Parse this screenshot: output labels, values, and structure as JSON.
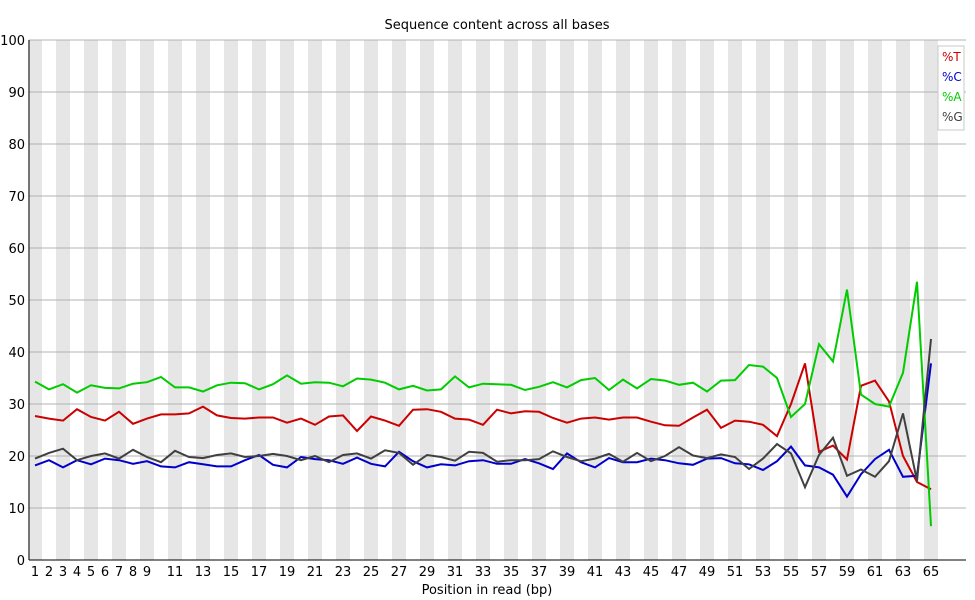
{
  "chart_data": {
    "type": "line",
    "title": "Sequence content across all bases",
    "xlabel": "Position in read (bp)",
    "ylabel": "",
    "ylim": [
      0,
      100
    ],
    "yticks": [
      "0",
      "10",
      "20",
      "30",
      "40",
      "50",
      "60",
      "70",
      "80",
      "90",
      "100"
    ],
    "xtick_labels": [
      {
        "pos": 1,
        "label": "1"
      },
      {
        "pos": 2,
        "label": "2"
      },
      {
        "pos": 3,
        "label": "3"
      },
      {
        "pos": 4,
        "label": "4"
      },
      {
        "pos": 5,
        "label": "5"
      },
      {
        "pos": 6,
        "label": "6"
      },
      {
        "pos": 7,
        "label": "7"
      },
      {
        "pos": 8,
        "label": "8"
      },
      {
        "pos": 9,
        "label": "9"
      },
      {
        "pos": 11,
        "label": "11"
      },
      {
        "pos": 13,
        "label": "13"
      },
      {
        "pos": 15,
        "label": "15"
      },
      {
        "pos": 17,
        "label": "17"
      },
      {
        "pos": 19,
        "label": "19"
      },
      {
        "pos": 21,
        "label": "21"
      },
      {
        "pos": 23,
        "label": "23"
      },
      {
        "pos": 25,
        "label": "25"
      },
      {
        "pos": 27,
        "label": "27"
      },
      {
        "pos": 29,
        "label": "29"
      },
      {
        "pos": 31,
        "label": "31"
      },
      {
        "pos": 33,
        "label": "33"
      },
      {
        "pos": 35,
        "label": "35"
      },
      {
        "pos": 37,
        "label": "37"
      },
      {
        "pos": 39,
        "label": "39"
      },
      {
        "pos": 41,
        "label": "41"
      },
      {
        "pos": 43,
        "label": "43"
      },
      {
        "pos": 45,
        "label": "45"
      },
      {
        "pos": 47,
        "label": "47"
      },
      {
        "pos": 49,
        "label": "49"
      },
      {
        "pos": 51,
        "label": "51"
      },
      {
        "pos": 53,
        "label": "53"
      },
      {
        "pos": 55,
        "label": "55"
      },
      {
        "pos": 57,
        "label": "57"
      },
      {
        "pos": 59,
        "label": "59"
      },
      {
        "pos": 61,
        "label": "61"
      },
      {
        "pos": 63,
        "label": "63"
      },
      {
        "pos": 65,
        "label": "65"
      }
    ],
    "x": [
      1,
      2,
      3,
      4,
      5,
      6,
      7,
      8,
      9,
      10,
      11,
      12,
      13,
      14,
      15,
      16,
      17,
      18,
      19,
      20,
      21,
      22,
      23,
      24,
      25,
      26,
      27,
      28,
      29,
      30,
      31,
      32,
      33,
      34,
      35,
      36,
      37,
      38,
      39,
      40,
      41,
      42,
      43,
      44,
      45,
      46,
      47,
      48,
      49,
      50,
      51,
      52,
      53,
      54,
      55,
      56,
      57,
      58,
      59,
      60,
      61,
      62,
      63,
      64,
      65
    ],
    "legend_position": "top-right",
    "grid": true,
    "series": [
      {
        "name": "%T",
        "color": "#cc0000",
        "values": [
          27.7,
          27.2,
          26.8,
          29.0,
          27.5,
          26.8,
          28.5,
          26.2,
          27.2,
          28.0,
          28.0,
          28.2,
          29.5,
          27.8,
          27.3,
          27.2,
          27.4,
          27.4,
          26.4,
          27.2,
          26.0,
          27.6,
          27.8,
          24.8,
          27.6,
          26.8,
          25.8,
          28.9,
          29.0,
          28.5,
          27.2,
          27.0,
          26.0,
          28.9,
          28.2,
          28.6,
          28.5,
          27.3,
          26.4,
          27.2,
          27.4,
          27.0,
          27.4,
          27.4,
          26.6,
          25.9,
          25.8,
          27.4,
          28.9,
          25.4,
          26.8,
          26.6,
          26.0,
          23.8,
          30.0,
          37.8,
          20.8,
          22.0,
          19.3,
          33.5,
          34.5,
          30.5,
          20.0,
          15.0,
          13.6
        ]
      },
      {
        "name": "%C",
        "color": "#0000cc",
        "values": [
          18.2,
          19.2,
          17.8,
          19.2,
          18.4,
          19.5,
          19.2,
          18.5,
          19.0,
          18.0,
          17.8,
          18.8,
          18.4,
          18.0,
          18.0,
          19.2,
          20.2,
          18.3,
          17.8,
          19.8,
          19.4,
          19.2,
          18.5,
          19.7,
          18.5,
          18.0,
          20.8,
          19.0,
          17.8,
          18.4,
          18.2,
          19.0,
          19.2,
          18.5,
          18.5,
          19.4,
          18.6,
          17.5,
          20.5,
          18.8,
          17.8,
          19.6,
          18.8,
          18.8,
          19.5,
          19.2,
          18.6,
          18.3,
          19.5,
          19.6,
          18.6,
          18.4,
          17.3,
          19.0,
          21.8,
          18.2,
          17.8,
          16.4,
          12.2,
          16.5,
          19.4,
          21.2,
          16.0,
          16.2,
          37.8
        ]
      },
      {
        "name": "%A",
        "color": "#00cc00",
        "values": [
          34.3,
          32.8,
          33.8,
          32.2,
          33.6,
          33.1,
          33.0,
          33.9,
          34.2,
          35.2,
          33.2,
          33.2,
          32.4,
          33.6,
          34.1,
          34.0,
          32.8,
          33.8,
          35.5,
          33.9,
          34.2,
          34.1,
          33.4,
          34.9,
          34.7,
          34.1,
          32.8,
          33.5,
          32.6,
          32.8,
          35.3,
          33.2,
          33.9,
          33.8,
          33.7,
          32.7,
          33.3,
          34.2,
          33.2,
          34.6,
          35.0,
          32.7,
          34.7,
          33.0,
          34.8,
          34.5,
          33.7,
          34.1,
          32.4,
          34.5,
          34.6,
          37.5,
          37.2,
          35.0,
          27.5,
          30.0,
          41.5,
          38.2,
          52.0,
          31.8,
          30.0,
          29.5,
          36.0,
          53.5,
          6.5
        ]
      },
      {
        "name": "%G",
        "color": "#404040",
        "values": [
          19.5,
          20.6,
          21.4,
          19.2,
          20.0,
          20.5,
          19.5,
          21.2,
          19.8,
          18.8,
          21.0,
          19.8,
          19.6,
          20.2,
          20.5,
          19.8,
          20.0,
          20.4,
          20.0,
          19.2,
          20.0,
          18.8,
          20.2,
          20.5,
          19.5,
          21.1,
          20.6,
          18.3,
          20.2,
          19.8,
          19.1,
          20.8,
          20.6,
          18.9,
          19.2,
          19.2,
          19.4,
          20.9,
          19.8,
          19.0,
          19.5,
          20.4,
          18.9,
          20.6,
          19.0,
          20.0,
          21.7,
          20.1,
          19.6,
          20.3,
          19.8,
          17.5,
          19.5,
          22.3,
          20.5,
          14.0,
          20.2,
          23.5,
          16.2,
          17.4,
          16.0,
          19.0,
          28.2,
          15.2,
          42.5
        ]
      }
    ]
  }
}
